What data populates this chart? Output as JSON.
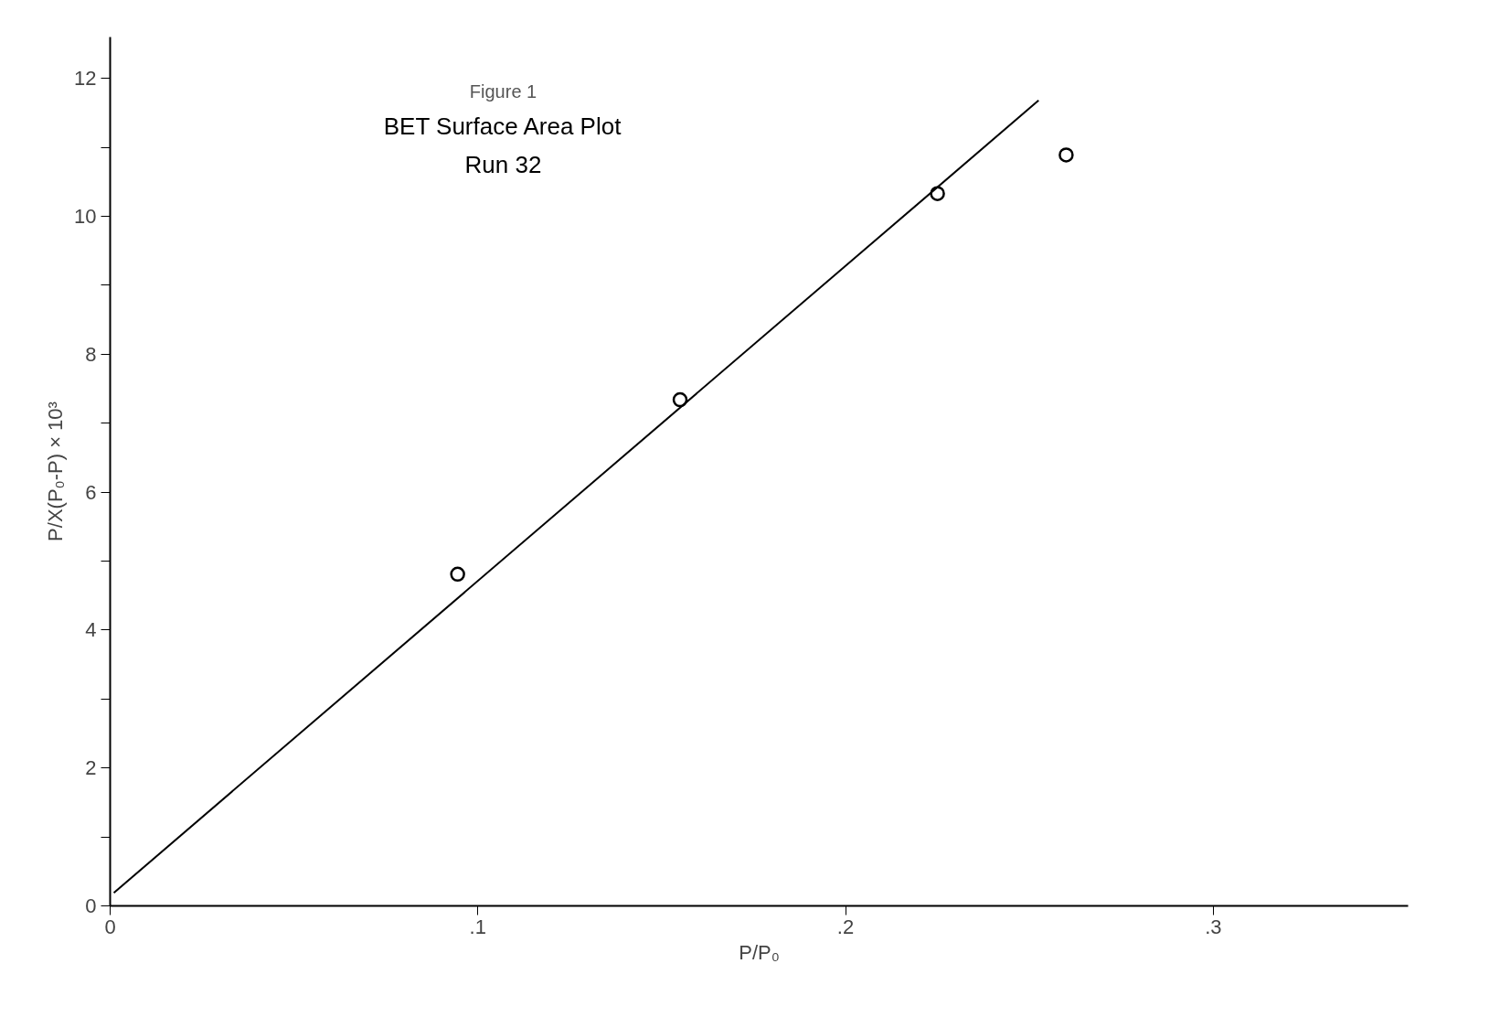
{
  "chart_data": {
    "type": "scatter",
    "title": "Figure 1",
    "subtitle": "BET Surface Area Plot",
    "annotations": [
      "Run 32"
    ],
    "xlabel": "P/P₀",
    "ylabel": "P/X(P₀-P) × 10³",
    "series": [
      {
        "color": "#000000",
        "marker": "circle",
        "x": [
          0.0945,
          0.155,
          0.225,
          0.26
        ],
        "values": [
          4.81,
          7.34,
          10.33,
          10.89
        ]
      },
      {
        "type": "line",
        "color": "#000000",
        "marker": "none",
        "line_style": "solid",
        "x": [
          0.001,
          0.2525
        ],
        "values": [
          0.19,
          11.68
        ]
      }
    ],
    "xlim": [
      0,
      0.353
    ],
    "ylim": [
      0,
      12.6
    ],
    "xticks": [
      0,
      {
        "value": 0.1,
        "label": ".1"
      },
      {
        "value": 0.2,
        "label": ".2"
      },
      {
        "value": 0.3,
        "label": ".3"
      }
    ],
    "yticks": [
      0,
      {
        "value": 1,
        "label": null
      },
      2,
      {
        "value": 3,
        "label": null
      },
      4,
      {
        "value": 5,
        "label": null
      },
      6,
      {
        "value": 7,
        "label": null
      },
      8,
      {
        "value": 9,
        "label": null
      },
      10,
      {
        "value": 11,
        "label": null
      },
      12
    ],
    "grid": false
  }
}
